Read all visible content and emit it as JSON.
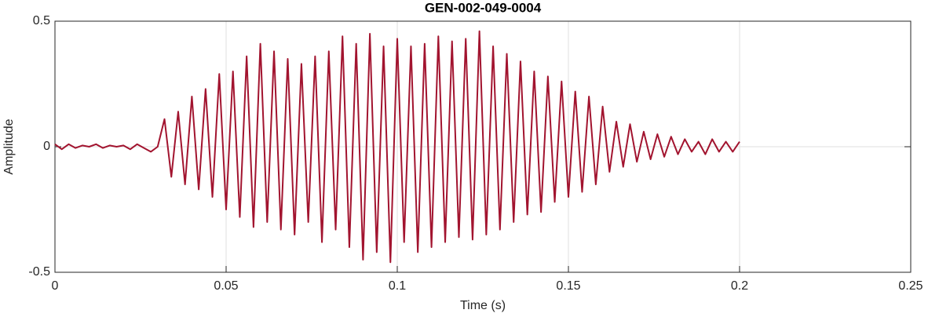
{
  "chart_data": {
    "type": "line",
    "title": "GEN-002-049-0004",
    "x_label": "Time (s)",
    "y_label": "Amplitude",
    "x": [
      0,
      0.002,
      0.004,
      0.006,
      0.008,
      0.01,
      0.012,
      0.014,
      0.016,
      0.018,
      0.02,
      0.022,
      0.024,
      0.026,
      0.028,
      0.03,
      0.032,
      0.034,
      0.036,
      0.038,
      0.04,
      0.042,
      0.044,
      0.046,
      0.048,
      0.05,
      0.052,
      0.054,
      0.056,
      0.058,
      0.06,
      0.062,
      0.064,
      0.066,
      0.068,
      0.07,
      0.072,
      0.074,
      0.076,
      0.078,
      0.08,
      0.082,
      0.084,
      0.086,
      0.088,
      0.09,
      0.092,
      0.094,
      0.096,
      0.098,
      0.1,
      0.102,
      0.104,
      0.106,
      0.108,
      0.11,
      0.112,
      0.114,
      0.116,
      0.118,
      0.12,
      0.122,
      0.124,
      0.126,
      0.128,
      0.13,
      0.132,
      0.134,
      0.136,
      0.138,
      0.14,
      0.142,
      0.144,
      0.146,
      0.148,
      0.15,
      0.152,
      0.154,
      0.156,
      0.158,
      0.16,
      0.162,
      0.164,
      0.166,
      0.168,
      0.17,
      0.172,
      0.174,
      0.176,
      0.178,
      0.18,
      0.182,
      0.184,
      0.186,
      0.188,
      0.19,
      0.192,
      0.194,
      0.196,
      0.198,
      0.2
    ],
    "series": [
      {
        "color": "#a2142f",
        "values": [
          0.01,
          -0.01,
          0.01,
          -0.005,
          0.005,
          0,
          0.01,
          -0.005,
          0.005,
          0,
          0.005,
          -0.01,
          0.01,
          -0.005,
          -0.02,
          0,
          0.11,
          -0.12,
          0.14,
          -0.15,
          0.2,
          -0.17,
          0.23,
          -0.2,
          0.29,
          -0.25,
          0.3,
          -0.28,
          0.36,
          -0.32,
          0.41,
          -0.3,
          0.38,
          -0.33,
          0.35,
          -0.35,
          0.33,
          -0.3,
          0.36,
          -0.38,
          0.38,
          -0.33,
          0.44,
          -0.4,
          0.41,
          -0.45,
          0.45,
          -0.42,
          0.4,
          -0.46,
          0.43,
          -0.38,
          0.4,
          -0.42,
          0.41,
          -0.4,
          0.44,
          -0.38,
          0.42,
          -0.36,
          0.43,
          -0.37,
          0.46,
          -0.35,
          0.4,
          -0.33,
          0.37,
          -0.3,
          0.34,
          -0.27,
          0.3,
          -0.26,
          0.28,
          -0.22,
          0.26,
          -0.2,
          0.22,
          -0.18,
          0.2,
          -0.15,
          0.16,
          -0.1,
          0.1,
          -0.08,
          0.09,
          -0.06,
          0.06,
          -0.05,
          0.05,
          -0.04,
          0.04,
          -0.03,
          0.03,
          -0.02,
          0.02,
          -0.03,
          0.03,
          -0.02,
          0.02,
          -0.02,
          0.02
        ]
      }
    ],
    "xlim": [
      0,
      0.25
    ],
    "xticks": [
      0,
      0.05,
      0.1,
      0.15,
      0.2,
      0.25
    ],
    "ylim": [
      -0.5,
      0.5
    ],
    "yticks": [
      -0.5,
      0,
      0.5
    ],
    "grid": true
  }
}
